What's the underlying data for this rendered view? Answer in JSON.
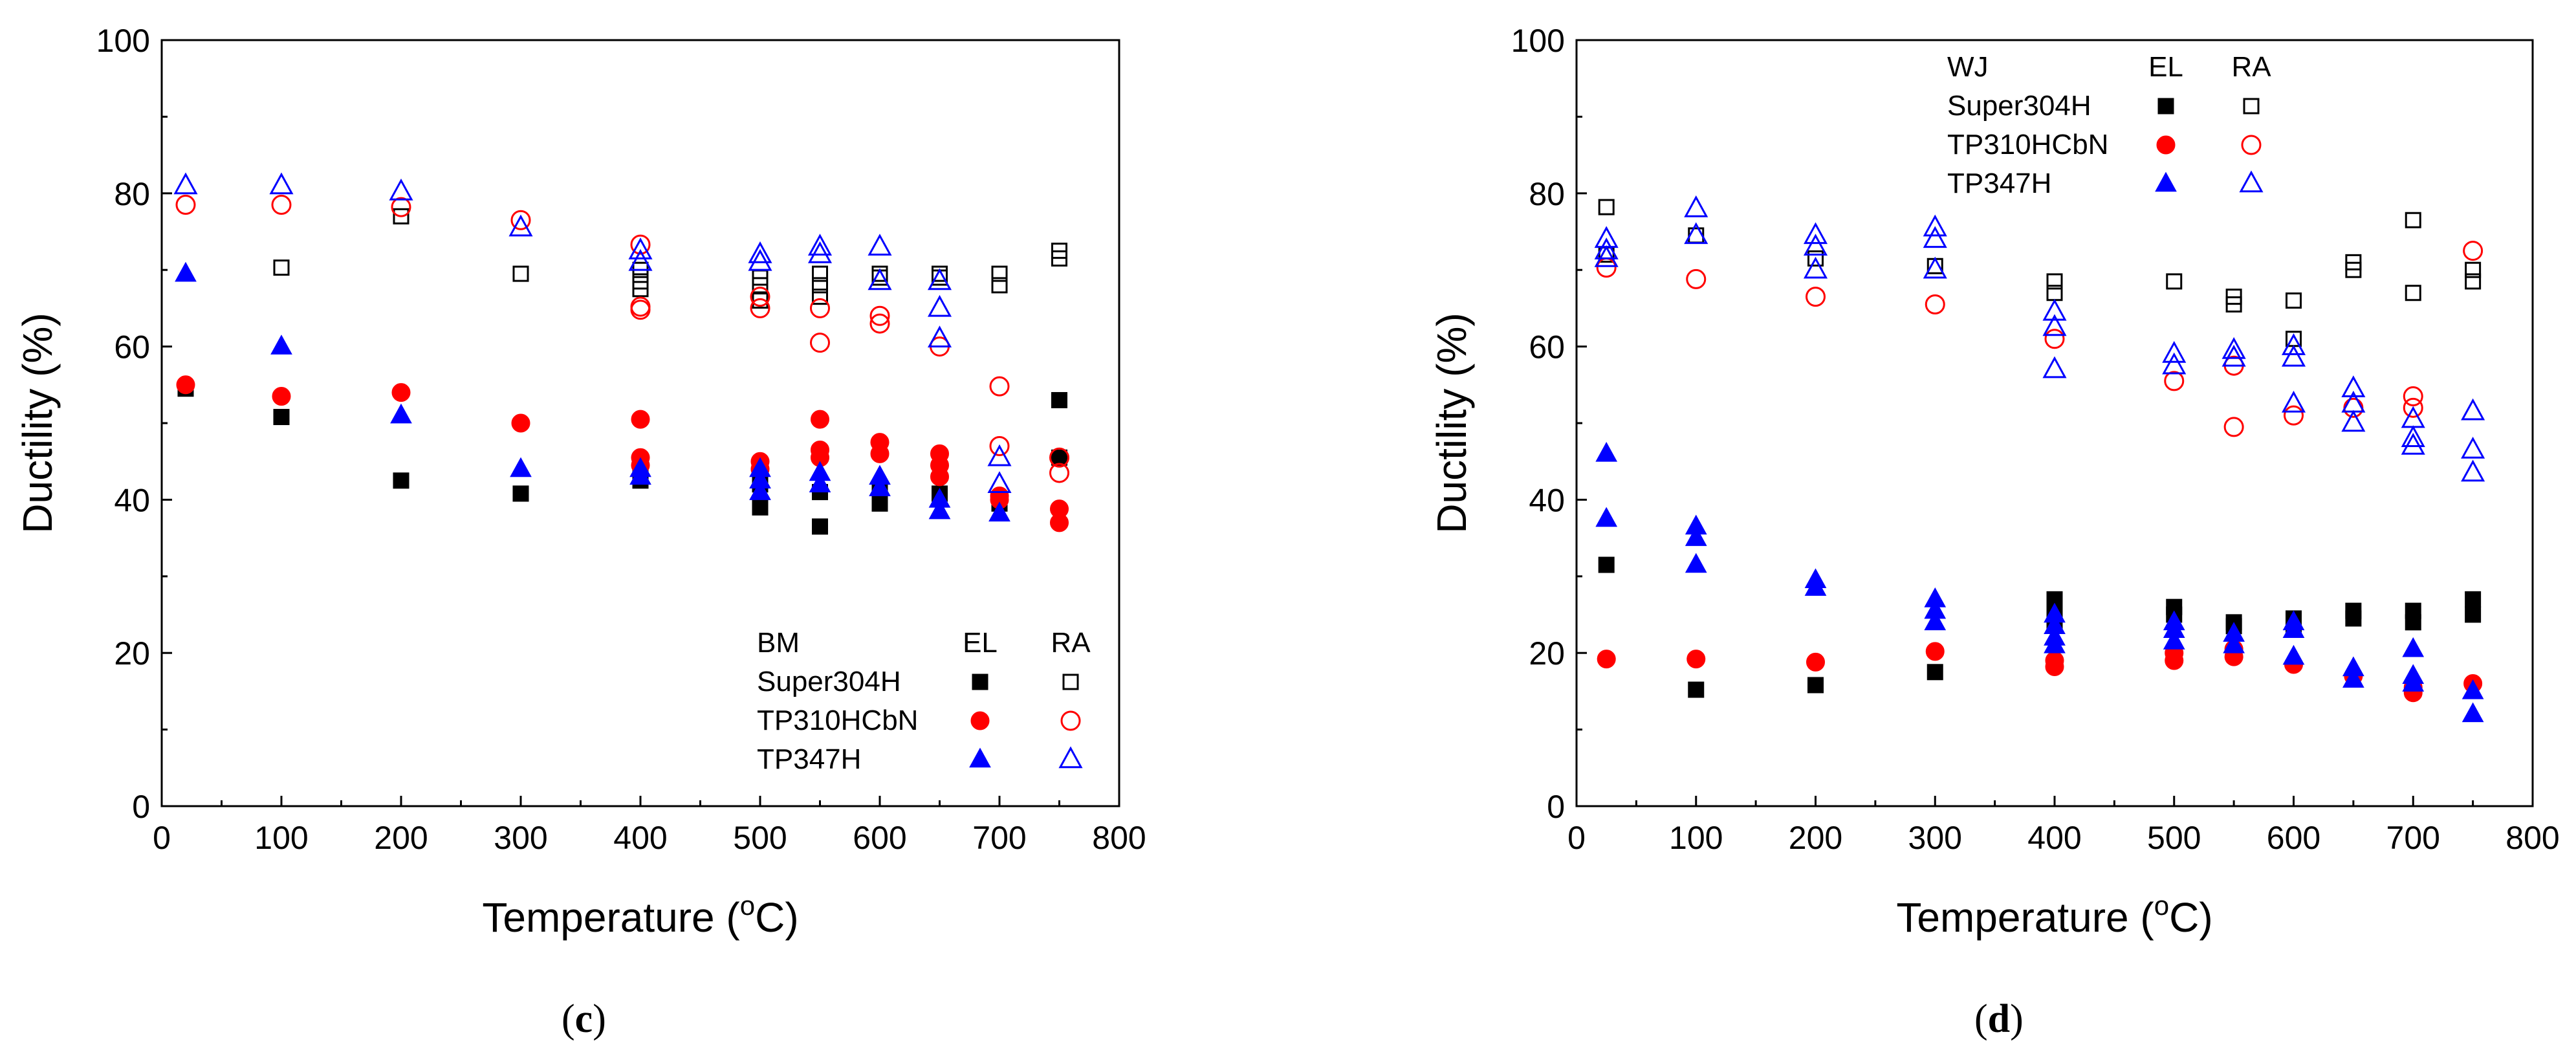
{
  "colors": {
    "super304h": "#000000",
    "tp310hcbn": "#ff0000",
    "tp347h": "#0000ff",
    "axis": "#000000"
  },
  "chart_data": [
    {
      "type": "scatter",
      "panel_label": "c",
      "xlabel_main": "Temperature (",
      "xlabel_sup": "o",
      "xlabel_unit": "C)",
      "ylabel": "Ductility (%)",
      "xlim": [
        0,
        800
      ],
      "ylim": [
        0,
        100
      ],
      "xticks": [
        "0",
        "100",
        "200",
        "300",
        "400",
        "500",
        "600",
        "700",
        "800"
      ],
      "yticks": [
        "0",
        "20",
        "40",
        "60",
        "80",
        "100"
      ],
      "legend": {
        "group": "BM",
        "col_el": "EL",
        "col_ra": "RA",
        "entries": [
          "Super304H",
          "TP310HCbN",
          "TP347H"
        ],
        "position": "bottom-right"
      },
      "series": [
        {
          "name": "Super304H",
          "metric": "EL",
          "marker": "square",
          "filled": true,
          "color_key": "super304h",
          "points": [
            [
              20,
              54.5
            ],
            [
              100,
              50.8
            ],
            [
              200,
              42.5
            ],
            [
              300,
              40.8
            ],
            [
              400,
              42.5
            ],
            [
              400,
              43.2
            ],
            [
              500,
              39
            ],
            [
              500,
              42
            ],
            [
              550,
              36.5
            ],
            [
              550,
              41
            ],
            [
              600,
              39.5
            ],
            [
              600,
              41
            ],
            [
              650,
              40.8
            ],
            [
              700,
              39.5
            ],
            [
              750,
              53
            ],
            [
              750,
              45.5
            ]
          ]
        },
        {
          "name": "TP310HCbN",
          "metric": "EL",
          "marker": "circle",
          "filled": true,
          "color_key": "tp310hcbn",
          "points": [
            [
              20,
              55
            ],
            [
              100,
              53.5
            ],
            [
              200,
              54
            ],
            [
              300,
              50
            ],
            [
              400,
              50.5
            ],
            [
              400,
              45.5
            ],
            [
              400,
              44.5
            ],
            [
              500,
              45
            ],
            [
              500,
              44
            ],
            [
              550,
              50.5
            ],
            [
              550,
              46.5
            ],
            [
              550,
              45.5
            ],
            [
              600,
              47.5
            ],
            [
              600,
              46
            ],
            [
              650,
              46
            ],
            [
              650,
              44.5
            ],
            [
              650,
              43
            ],
            [
              700,
              40.5
            ],
            [
              700,
              40
            ],
            [
              750,
              38.8
            ],
            [
              750,
              37
            ]
          ]
        },
        {
          "name": "TP347H",
          "metric": "EL",
          "marker": "triangle",
          "filled": true,
          "color_key": "tp347h",
          "points": [
            [
              20,
              69.5
            ],
            [
              100,
              60
            ],
            [
              200,
              51
            ],
            [
              300,
              44
            ],
            [
              400,
              44
            ],
            [
              400,
              43
            ],
            [
              500,
              44
            ],
            [
              500,
              42.5
            ],
            [
              500,
              41
            ],
            [
              550,
              43.5
            ],
            [
              550,
              42
            ],
            [
              600,
              43
            ],
            [
              600,
              41.5
            ],
            [
              650,
              40
            ],
            [
              650,
              38.5
            ],
            [
              700,
              38.2
            ]
          ]
        },
        {
          "name": "Super304H",
          "metric": "RA",
          "marker": "square",
          "filled": false,
          "color_key": "super304h",
          "points": [
            [
              100,
              70.3
            ],
            [
              200,
              77
            ],
            [
              300,
              69.5
            ],
            [
              400,
              70
            ],
            [
              400,
              68.5
            ],
            [
              400,
              67.5
            ],
            [
              500,
              69
            ],
            [
              500,
              68
            ],
            [
              500,
              66
            ],
            [
              550,
              69.5
            ],
            [
              550,
              68
            ],
            [
              550,
              66.5
            ],
            [
              600,
              69.5
            ],
            [
              600,
              69
            ],
            [
              650,
              69.5
            ],
            [
              650,
              69
            ],
            [
              700,
              69.5
            ],
            [
              700,
              68
            ],
            [
              750,
              72.5
            ],
            [
              750,
              71.5
            ]
          ]
        },
        {
          "name": "TP310HCbN",
          "metric": "RA",
          "marker": "circle",
          "filled": false,
          "color_key": "tp310hcbn",
          "points": [
            [
              20,
              78.5
            ],
            [
              100,
              78.5
            ],
            [
              200,
              78.2
            ],
            [
              300,
              76.5
            ],
            [
              400,
              73.3
            ],
            [
              400,
              65.2
            ],
            [
              400,
              64.8
            ],
            [
              500,
              66.5
            ],
            [
              500,
              65
            ],
            [
              550,
              65
            ],
            [
              550,
              60.5
            ],
            [
              600,
              64
            ],
            [
              600,
              63
            ],
            [
              650,
              60
            ],
            [
              700,
              54.8
            ],
            [
              700,
              47
            ],
            [
              750,
              45.5
            ],
            [
              750,
              43.5
            ]
          ]
        },
        {
          "name": "TP347H",
          "metric": "RA",
          "marker": "triangle",
          "filled": false,
          "color_key": "tp347h",
          "points": [
            [
              20,
              81
            ],
            [
              100,
              81
            ],
            [
              200,
              80.2
            ],
            [
              300,
              75.5
            ],
            [
              400,
              72.5
            ],
            [
              400,
              71
            ],
            [
              500,
              72
            ],
            [
              500,
              71
            ],
            [
              550,
              73
            ],
            [
              550,
              72
            ],
            [
              600,
              73
            ],
            [
              600,
              68.5
            ],
            [
              650,
              68.5
            ],
            [
              650,
              65
            ],
            [
              650,
              61
            ],
            [
              700,
              45.5
            ],
            [
              700,
              42
            ]
          ]
        }
      ]
    },
    {
      "type": "scatter",
      "panel_label": "d",
      "xlabel_main": "Temperature (",
      "xlabel_sup": "o",
      "xlabel_unit": "C)",
      "ylabel": "Ductility (%)",
      "xlim": [
        0,
        800
      ],
      "ylim": [
        0,
        100
      ],
      "xticks": [
        "0",
        "100",
        "200",
        "300",
        "400",
        "500",
        "600",
        "700",
        "800"
      ],
      "yticks": [
        "0",
        "20",
        "40",
        "60",
        "80",
        "100"
      ],
      "legend": {
        "group": "WJ",
        "col_el": "EL",
        "col_ra": "RA",
        "entries": [
          "Super304H",
          "TP310HCbN",
          "TP347H"
        ],
        "position": "top-center"
      },
      "series": [
        {
          "name": "Super304H",
          "metric": "EL",
          "marker": "square",
          "filled": true,
          "color_key": "super304h",
          "points": [
            [
              25,
              31.5
            ],
            [
              100,
              15.2
            ],
            [
              200,
              15.8
            ],
            [
              300,
              17.5
            ],
            [
              400,
              27
            ],
            [
              400,
              26
            ],
            [
              400,
              24
            ],
            [
              500,
              26
            ],
            [
              500,
              25
            ],
            [
              550,
              24
            ],
            [
              550,
              23.5
            ],
            [
              600,
              24.5
            ],
            [
              600,
              23.5
            ],
            [
              650,
              25.5
            ],
            [
              650,
              24.5
            ],
            [
              700,
              25.5
            ],
            [
              700,
              24
            ],
            [
              750,
              27
            ],
            [
              750,
              25
            ]
          ]
        },
        {
          "name": "TP310HCbN",
          "metric": "EL",
          "marker": "circle",
          "filled": true,
          "color_key": "tp310hcbn",
          "points": [
            [
              25,
              19.2
            ],
            [
              100,
              19.2
            ],
            [
              200,
              18.8
            ],
            [
              300,
              20.2
            ],
            [
              400,
              19
            ],
            [
              400,
              18.2
            ],
            [
              500,
              20
            ],
            [
              500,
              19
            ],
            [
              550,
              20.5
            ],
            [
              550,
              19.5
            ],
            [
              600,
              18.5
            ],
            [
              650,
              17
            ],
            [
              700,
              15.5
            ],
            [
              700,
              14.8
            ],
            [
              750,
              16
            ]
          ]
        },
        {
          "name": "TP347H",
          "metric": "EL",
          "marker": "triangle",
          "filled": true,
          "color_key": "tp347h",
          "points": [
            [
              25,
              46
            ],
            [
              25,
              37.5
            ],
            [
              100,
              36.5
            ],
            [
              100,
              35
            ],
            [
              100,
              31.5
            ],
            [
              200,
              29.5
            ],
            [
              200,
              28.5
            ],
            [
              300,
              27
            ],
            [
              300,
              25.5
            ],
            [
              300,
              24
            ],
            [
              400,
              25
            ],
            [
              400,
              23.5
            ],
            [
              400,
              22
            ],
            [
              400,
              21
            ],
            [
              500,
              24
            ],
            [
              500,
              23
            ],
            [
              500,
              21.5
            ],
            [
              550,
              22.5
            ],
            [
              550,
              21
            ],
            [
              600,
              24
            ],
            [
              600,
              23
            ],
            [
              600,
              19.5
            ],
            [
              650,
              18
            ],
            [
              650,
              16.5
            ],
            [
              700,
              20.5
            ],
            [
              700,
              17
            ],
            [
              700,
              16
            ],
            [
              750,
              15
            ],
            [
              750,
              12
            ]
          ]
        },
        {
          "name": "Super304H",
          "metric": "RA",
          "marker": "square",
          "filled": false,
          "color_key": "super304h",
          "points": [
            [
              25,
              78.2
            ],
            [
              25,
              72
            ],
            [
              100,
              74.5
            ],
            [
              200,
              71.5
            ],
            [
              300,
              70.5
            ],
            [
              400,
              68.5
            ],
            [
              400,
              67
            ],
            [
              500,
              68.5
            ],
            [
              550,
              66.5
            ],
            [
              550,
              65.5
            ],
            [
              600,
              66
            ],
            [
              600,
              61
            ],
            [
              650,
              71
            ],
            [
              650,
              70
            ],
            [
              700,
              76.5
            ],
            [
              700,
              67
            ],
            [
              750,
              70
            ],
            [
              750,
              68.5
            ]
          ]
        },
        {
          "name": "TP310HCbN",
          "metric": "RA",
          "marker": "circle",
          "filled": false,
          "color_key": "tp310hcbn",
          "points": [
            [
              25,
              70.3
            ],
            [
              100,
              68.8
            ],
            [
              200,
              66.5
            ],
            [
              300,
              65.5
            ],
            [
              400,
              61
            ],
            [
              500,
              55.5
            ],
            [
              550,
              57.5
            ],
            [
              550,
              49.5
            ],
            [
              600,
              51
            ],
            [
              650,
              52
            ],
            [
              700,
              53.5
            ],
            [
              700,
              52
            ],
            [
              750,
              72.5
            ]
          ]
        },
        {
          "name": "TP347H",
          "metric": "RA",
          "marker": "triangle",
          "filled": false,
          "color_key": "tp347h",
          "points": [
            [
              25,
              74
            ],
            [
              25,
              72.5
            ],
            [
              25,
              71.5
            ],
            [
              100,
              78
            ],
            [
              100,
              74.5
            ],
            [
              200,
              74.5
            ],
            [
              200,
              73
            ],
            [
              200,
              70
            ],
            [
              300,
              75.5
            ],
            [
              300,
              74
            ],
            [
              300,
              70
            ],
            [
              400,
              64.5
            ],
            [
              400,
              62.5
            ],
            [
              400,
              57
            ],
            [
              500,
              59
            ],
            [
              500,
              57.5
            ],
            [
              550,
              59.5
            ],
            [
              550,
              58.5
            ],
            [
              600,
              60
            ],
            [
              600,
              58.5
            ],
            [
              600,
              52.5
            ],
            [
              650,
              54.5
            ],
            [
              650,
              52.5
            ],
            [
              650,
              50
            ],
            [
              700,
              50.5
            ],
            [
              700,
              48
            ],
            [
              700,
              47
            ],
            [
              750,
              51.5
            ],
            [
              750,
              46.5
            ],
            [
              750,
              43.5
            ]
          ]
        }
      ]
    }
  ]
}
